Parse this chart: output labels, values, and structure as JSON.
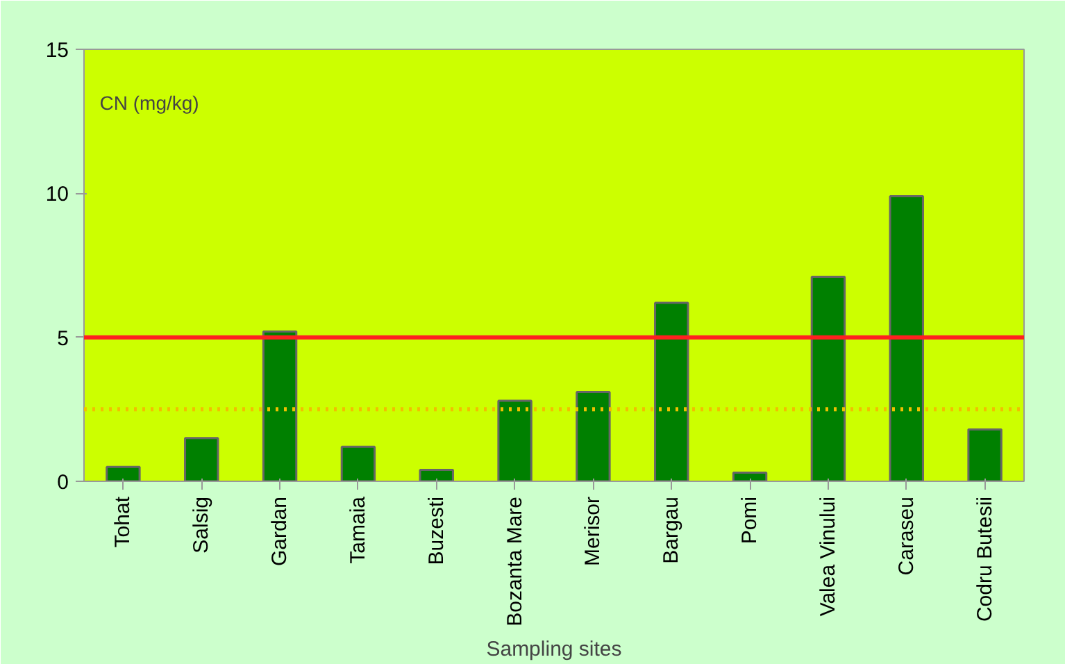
{
  "chart_data": {
    "type": "bar",
    "categories": [
      "Tohat",
      "Salsig",
      "Gardan",
      "Tamaia",
      "Buzesti",
      "Bozanta Mare",
      "Merisor",
      "Bargau",
      "Pomi",
      "Valea Vinului",
      "Caraseu",
      "Codru Butesii"
    ],
    "values": [
      0.5,
      1.5,
      5.2,
      1.2,
      0.4,
      2.8,
      3.1,
      6.2,
      0.3,
      7.1,
      9.9,
      1.8
    ],
    "color": "#008000",
    "xlabel": "Sampling sites",
    "annotations": [
      "CN   (mg/kg)"
    ],
    "ylim": [
      0,
      15
    ],
    "yticks": [
      0,
      5,
      10,
      15
    ],
    "ref_lines": [
      {
        "axis": "y",
        "value": 5,
        "color": "#ff2020",
        "line_style": "solid"
      },
      {
        "axis": "y",
        "value": 2.5,
        "color": "#f0c000",
        "line_style": "dotted"
      }
    ],
    "grid": false
  }
}
